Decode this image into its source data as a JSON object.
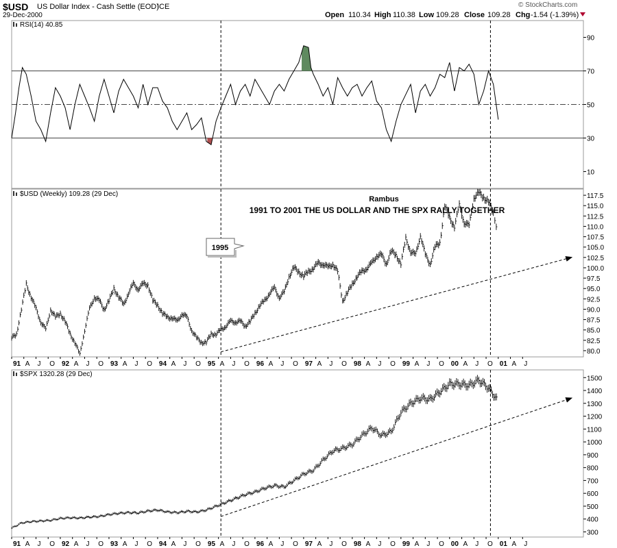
{
  "header": {
    "symbol": "$USD",
    "name": "US Dollar Index - Cash Settle (EOD)",
    "exchange": "ICE",
    "date": "29-Dec-2000",
    "watermark": "© StockCharts.com",
    "open_label": "Open",
    "open": "110.34",
    "high_label": "High",
    "high": "110.38",
    "low_label": "Low",
    "low": "109.28",
    "close_label": "Close",
    "close": "109.28",
    "chg_label": "Chg",
    "chg": "-1.54 (-1.39%)"
  },
  "colors": {
    "overbought_fill": "#5f8a5f",
    "oversold_fill": "#b05050",
    "down_marker": "#b00030"
  },
  "chart_data": [
    {
      "type": "line",
      "title": "RSI(14) 40.85",
      "y_ticks": [
        10,
        30,
        50,
        70,
        90
      ],
      "ylim": [
        0,
        100
      ],
      "reference_lines": [
        30,
        50,
        70
      ],
      "x": [
        1991.0,
        1991.08,
        1991.15,
        1991.22,
        1991.3,
        1991.4,
        1991.5,
        1991.6,
        1991.7,
        1991.8,
        1991.9,
        1992.0,
        1992.1,
        1992.2,
        1992.3,
        1992.4,
        1992.5,
        1992.6,
        1992.7,
        1992.8,
        1992.9,
        1993.0,
        1993.1,
        1993.2,
        1993.3,
        1993.4,
        1993.5,
        1993.6,
        1993.7,
        1993.8,
        1993.9,
        1994.0,
        1994.1,
        1994.2,
        1994.3,
        1994.4,
        1994.5,
        1994.6,
        1994.7,
        1994.8,
        1994.9,
        1995.0,
        1995.1,
        1995.2,
        1995.3,
        1995.4,
        1995.5,
        1995.6,
        1995.7,
        1995.8,
        1995.9,
        1996.0,
        1996.1,
        1996.2,
        1996.3,
        1996.4,
        1996.5,
        1996.6,
        1996.7,
        1996.8,
        1996.9,
        1997.0,
        1997.1,
        1997.15,
        1997.2,
        1997.3,
        1997.4,
        1997.5,
        1997.6,
        1997.7,
        1997.8,
        1997.9,
        1998.0,
        1998.1,
        1998.2,
        1998.3,
        1998.4,
        1998.5,
        1998.6,
        1998.7,
        1998.8,
        1998.9,
        1999.0,
        1999.1,
        1999.2,
        1999.3,
        1999.4,
        1999.5,
        1999.6,
        1999.7,
        1999.8,
        1999.9,
        2000.0,
        2000.1,
        2000.2,
        2000.3,
        2000.4,
        2000.5,
        2000.6,
        2000.7,
        2000.8,
        2000.9,
        2001.0
      ],
      "values": [
        30,
        45,
        60,
        72,
        68,
        55,
        40,
        35,
        28,
        45,
        60,
        55,
        48,
        35,
        50,
        62,
        55,
        48,
        40,
        55,
        65,
        55,
        45,
        58,
        65,
        60,
        55,
        48,
        62,
        50,
        60,
        60,
        52,
        48,
        40,
        35,
        40,
        45,
        35,
        38,
        42,
        28,
        26,
        40,
        48,
        55,
        62,
        50,
        58,
        62,
        55,
        65,
        60,
        55,
        50,
        58,
        62,
        58,
        65,
        70,
        75,
        85,
        84,
        72,
        68,
        62,
        55,
        60,
        50,
        66,
        60,
        55,
        60,
        62,
        55,
        60,
        64,
        52,
        48,
        35,
        28,
        40,
        50,
        56,
        62,
        45,
        58,
        62,
        55,
        60,
        68,
        66,
        75,
        58,
        72,
        70,
        74,
        68,
        50,
        58,
        70,
        62,
        41
      ]
    },
    {
      "type": "bar",
      "title": "$USD (Weekly) 109.28 (29 Dec)",
      "annotations": [
        "Rambus",
        "1991 TO 2001 THE US DOLLAR AND THE SPX RALLY TOGETHER",
        "1995"
      ],
      "y_ticks": [
        80.0,
        82.5,
        85.0,
        87.5,
        90.0,
        92.5,
        95.0,
        97.5,
        100.0,
        102.5,
        105.0,
        107.5,
        110.0,
        112.5,
        115.0,
        117.5
      ],
      "ylim": [
        78.5,
        119.0
      ],
      "x": [
        1991.0,
        1991.1,
        1991.2,
        1991.3,
        1991.4,
        1991.5,
        1991.6,
        1991.7,
        1991.8,
        1991.9,
        1992.0,
        1992.1,
        1992.2,
        1992.3,
        1992.4,
        1992.5,
        1992.6,
        1992.7,
        1992.8,
        1992.9,
        1993.0,
        1993.1,
        1993.2,
        1993.3,
        1993.4,
        1993.5,
        1993.6,
        1993.7,
        1993.8,
        1993.9,
        1994.0,
        1994.1,
        1994.2,
        1994.3,
        1994.4,
        1994.5,
        1994.6,
        1994.7,
        1994.8,
        1994.9,
        1995.0,
        1995.1,
        1995.2,
        1995.3,
        1995.4,
        1995.5,
        1995.6,
        1995.7,
        1995.8,
        1995.9,
        1996.0,
        1996.1,
        1996.2,
        1996.3,
        1996.4,
        1996.5,
        1996.6,
        1996.7,
        1996.8,
        1996.9,
        1997.0,
        1997.1,
        1997.2,
        1997.3,
        1997.4,
        1997.5,
        1997.6,
        1997.7,
        1997.8,
        1997.9,
        1998.0,
        1998.1,
        1998.2,
        1998.3,
        1998.4,
        1998.5,
        1998.6,
        1998.7,
        1998.8,
        1998.9,
        1999.0,
        1999.1,
        1999.2,
        1999.3,
        1999.4,
        1999.5,
        1999.6,
        1999.7,
        1999.8,
        1999.9,
        2000.0,
        2000.1,
        2000.2,
        2000.3,
        2000.4,
        2000.5,
        2000.6,
        2000.7,
        2000.8,
        2000.9,
        2000.99
      ],
      "values": [
        83,
        84,
        90,
        96,
        93,
        90,
        87,
        85,
        90,
        88,
        89,
        87,
        84,
        82,
        79,
        85,
        90,
        93,
        92,
        90,
        92,
        95,
        93,
        91,
        94,
        96,
        95,
        96,
        96,
        92,
        91,
        89,
        88,
        88,
        87,
        89,
        88,
        85,
        83,
        82,
        82,
        84,
        84,
        85,
        86,
        87,
        87,
        87,
        86,
        87,
        89,
        91,
        92,
        94,
        95,
        93,
        94,
        98,
        100,
        99,
        98,
        99,
        100,
        101,
        101,
        100,
        101,
        99,
        92,
        94,
        96,
        98,
        99,
        100,
        101,
        103,
        103,
        101,
        104,
        103,
        101,
        107,
        104,
        103,
        108,
        103,
        101,
        105,
        106,
        115,
        112,
        110,
        115,
        111,
        110,
        117,
        118,
        117,
        116,
        113,
        109
      ]
    },
    {
      "type": "bar",
      "title": "$SPX 1320.28 (29 Dec)",
      "y_ticks": [
        300,
        400,
        500,
        600,
        700,
        800,
        900,
        1000,
        1100,
        1200,
        1300,
        1400,
        1500
      ],
      "ylim": [
        260,
        1560
      ],
      "x_tick_labels": [
        "91",
        "A",
        "J",
        "O",
        "92",
        "A",
        "J",
        "O",
        "93",
        "A",
        "J",
        "O",
        "94",
        "A",
        "J",
        "O",
        "95",
        "A",
        "J",
        "O",
        "96",
        "A",
        "J",
        "O",
        "97",
        "A",
        "J",
        "O",
        "98",
        "A",
        "J",
        "O",
        "99",
        "A",
        "J",
        "O",
        "00",
        "A",
        "J",
        "O",
        "01",
        "A",
        "J"
      ],
      "x": [
        1991.0,
        1991.2,
        1991.4,
        1991.6,
        1991.8,
        1992.0,
        1992.2,
        1992.4,
        1992.6,
        1992.8,
        1993.0,
        1993.2,
        1993.4,
        1993.6,
        1993.8,
        1994.0,
        1994.2,
        1994.4,
        1994.6,
        1994.8,
        1995.0,
        1995.2,
        1995.4,
        1995.6,
        1995.8,
        1996.0,
        1996.2,
        1996.4,
        1996.6,
        1996.8,
        1997.0,
        1997.2,
        1997.4,
        1997.6,
        1997.8,
        1998.0,
        1998.2,
        1998.4,
        1998.6,
        1998.8,
        1999.0,
        1999.2,
        1999.4,
        1999.6,
        1999.8,
        2000.0,
        2000.2,
        2000.4,
        2000.6,
        2000.8,
        2000.99
      ],
      "values": [
        330,
        370,
        380,
        385,
        390,
        405,
        410,
        408,
        415,
        420,
        435,
        445,
        450,
        448,
        462,
        470,
        455,
        450,
        460,
        455,
        470,
        500,
        530,
        560,
        590,
        610,
        640,
        660,
        650,
        700,
        750,
        780,
        860,
        930,
        950,
        980,
        1050,
        1110,
        1050,
        1080,
        1230,
        1300,
        1340,
        1330,
        1390,
        1450,
        1450,
        1440,
        1480,
        1420,
        1320
      ]
    }
  ]
}
